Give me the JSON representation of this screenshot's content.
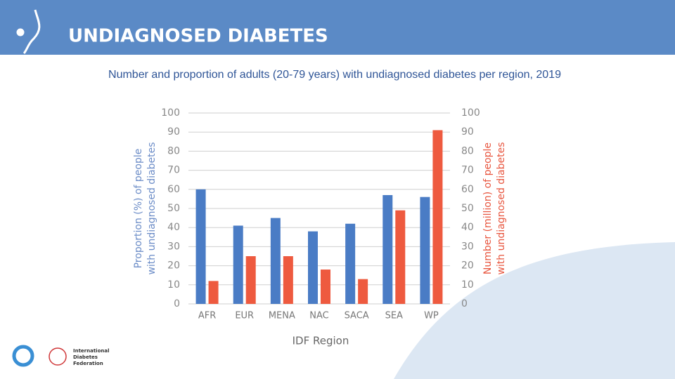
{
  "chart_data": {
    "type": "bar",
    "title": "UNDIAGNOSED DIABETES",
    "subtitle": "Number and proportion of adults (20-79 years) with undiagnosed diabetes per region, 2019",
    "x_label": "IDF Region",
    "y_label": [
      "Proportion (%) of people",
      "with undiagnosed diabetes"
    ],
    "y2_label": [
      "Number (million) of people",
      "with undiagnosed diabetes"
    ],
    "categories": [
      "AFR",
      "EUR",
      "MENA",
      "NAC",
      "SACA",
      "SEA",
      "WP"
    ],
    "series": [
      {
        "name": "Proportion (%)",
        "color": "#4a7cc5",
        "values": [
          60,
          41,
          45,
          38,
          42,
          57,
          56
        ]
      },
      {
        "name": "Number (million)",
        "color": "#ee5a3f",
        "axis": "y2",
        "values": [
          12,
          25,
          25,
          18,
          13,
          49,
          91
        ]
      }
    ],
    "ylim": [
      0,
      100
    ],
    "yticks": [
      0,
      10,
      20,
      30,
      40,
      50,
      60,
      70,
      80,
      90,
      100
    ],
    "y2lim": [
      0,
      100
    ],
    "y2ticks": [
      0,
      10,
      20,
      30,
      40,
      50,
      60,
      70,
      80,
      90,
      100
    ],
    "grid": true
  },
  "footer": {
    "logo_text": [
      "International",
      "Diabetes",
      "Federation"
    ]
  }
}
